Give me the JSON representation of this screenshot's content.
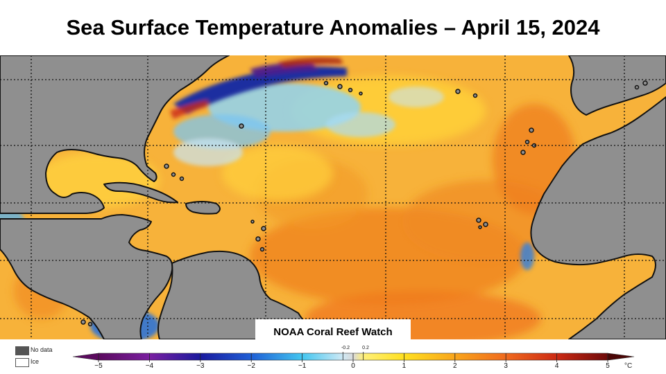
{
  "title": "Sea Surface Temperature Anomalies – April 15, 2024",
  "credit": "NOAA Coral Reef Watch",
  "legend": {
    "no_data_label": "No data",
    "ice_label": "Ice",
    "no_data_color": "#555555",
    "ice_color": "#ffffff",
    "unit": "°C",
    "ticks": [
      "−5",
      "−4",
      "−3",
      "−2",
      "−1",
      "0",
      "1",
      "2",
      "3",
      "4",
      "5"
    ],
    "near_zero_labels": [
      "-0.2",
      "0.2"
    ],
    "colors": {
      "neg5": "#5b0a5e",
      "neg4": "#7a1fa0",
      "neg3": "#1a1a9e",
      "neg2": "#1f5fd6",
      "neg1": "#43c6f0",
      "zero": "#d9d9d9",
      "pos1": "#ffe020",
      "pos2": "#f9a51c",
      "pos3": "#f06a1e",
      "pos4": "#cc2a14",
      "pos5": "#6e0a0a"
    }
  },
  "map": {
    "land_color": "#8f8f8f",
    "ocean_base_color": "#f7b23a",
    "warm_color": "#f0861e",
    "cool_color": "#6fb8ee",
    "cold_color": "#1b2fa0",
    "grid_color": "#111111"
  }
}
